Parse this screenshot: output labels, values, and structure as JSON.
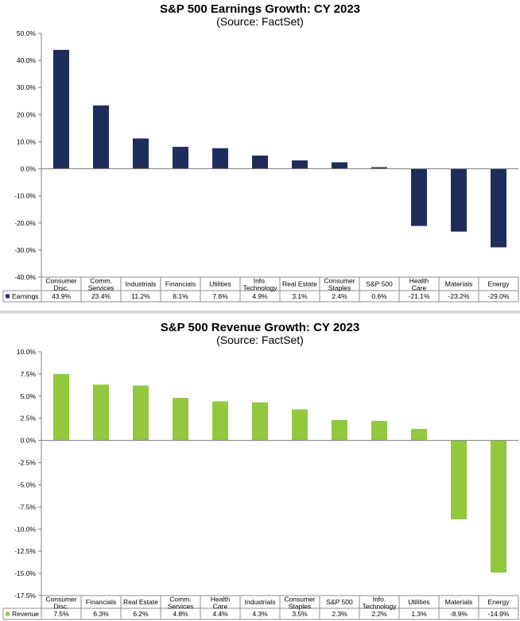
{
  "chart_data": [
    {
      "type": "bar",
      "title": "S&P 500 Earnings Growth: CY 2023",
      "subtitle": "(Source: FactSet)",
      "categories": [
        "Consumer Disc.",
        "Comm. Services",
        "Industrials",
        "Financials",
        "Utilities",
        "Info. Technology",
        "Real Estate",
        "Consumer Staples",
        "S&P 500",
        "Health Care",
        "Materials",
        "Energy"
      ],
      "category_lines": [
        [
          "Consumer",
          "Disc."
        ],
        [
          "Comm.",
          "Services"
        ],
        [
          "Industrials"
        ],
        [
          "Financials"
        ],
        [
          "Utilities"
        ],
        [
          "Info.",
          "Technology"
        ],
        [
          "Real Estate"
        ],
        [
          "Consumer",
          "Staples"
        ],
        [
          "S&P 500"
        ],
        [
          "Health",
          "Care"
        ],
        [
          "Materials"
        ],
        [
          "Energy"
        ]
      ],
      "series": [
        {
          "name": "Earnings",
          "values": [
            43.9,
            23.4,
            11.2,
            8.1,
            7.6,
            4.9,
            3.1,
            2.4,
            0.6,
            -21.1,
            -23.2,
            -29.0
          ],
          "labels": [
            "43.9%",
            "23.4%",
            "11.2%",
            "8.1%",
            "7.6%",
            "4.9%",
            "3.1%",
            "2.4%",
            "0.6%",
            "-21.1%",
            "-23.2%",
            "-29.0%"
          ],
          "color": "#1f2d5c"
        }
      ],
      "ylim": [
        -40,
        50
      ],
      "yticks": [
        -40,
        -30,
        -20,
        -10,
        0,
        10,
        20,
        30,
        40,
        50
      ],
      "ytick_labels": [
        "-40.0%",
        "-30.0%",
        "-20.0%",
        "-10.0%",
        "0.0%",
        "10.0%",
        "20.0%",
        "30.0%",
        "40.0%",
        "50.0%"
      ],
      "xlabel": "",
      "ylabel": "",
      "grid": false,
      "legend": "data-table-left"
    },
    {
      "type": "bar",
      "title": "S&P 500 Revenue Growth: CY 2023",
      "subtitle": "(Source: FactSet)",
      "categories": [
        "Consumer Disc.",
        "Financials",
        "Real Estate",
        "Comm. Services",
        "Health Care",
        "Industrials",
        "Consumer Staples",
        "S&P 500",
        "Info. Technology",
        "Utilities",
        "Materials",
        "Energy"
      ],
      "category_lines": [
        [
          "Consumer",
          "Disc."
        ],
        [
          "Financials"
        ],
        [
          "Real Estate"
        ],
        [
          "Comm.",
          "Services"
        ],
        [
          "Health",
          "Care"
        ],
        [
          "Industrials"
        ],
        [
          "Consumer",
          "Staples"
        ],
        [
          "S&P 500"
        ],
        [
          "Info.",
          "Technology"
        ],
        [
          "Utilities"
        ],
        [
          "Materials"
        ],
        [
          "Energy"
        ]
      ],
      "series": [
        {
          "name": "Revenue",
          "values": [
            7.5,
            6.3,
            6.2,
            4.8,
            4.4,
            4.3,
            3.5,
            2.3,
            2.2,
            1.3,
            -8.9,
            -14.9
          ],
          "labels": [
            "7.5%",
            "6.3%",
            "6.2%",
            "4.8%",
            "4.4%",
            "4.3%",
            "3.5%",
            "2.3%",
            "2.2%",
            "1.3%",
            "-8.9%",
            "-14.9%"
          ],
          "color": "#92c83e"
        }
      ],
      "ylim": [
        -17.5,
        10
      ],
      "yticks": [
        -17.5,
        -15,
        -12.5,
        -10,
        -7.5,
        -5,
        -2.5,
        0,
        2.5,
        5,
        7.5,
        10
      ],
      "ytick_labels": [
        "-17.5%",
        "-15.0%",
        "-12.5%",
        "-10.0%",
        "-7.5%",
        "-5.0%",
        "-2.5%",
        "0.0%",
        "2.5%",
        "5.0%",
        "7.5%",
        "10.0%"
      ],
      "xlabel": "",
      "ylabel": "",
      "grid": false,
      "legend": "data-table-left"
    }
  ]
}
